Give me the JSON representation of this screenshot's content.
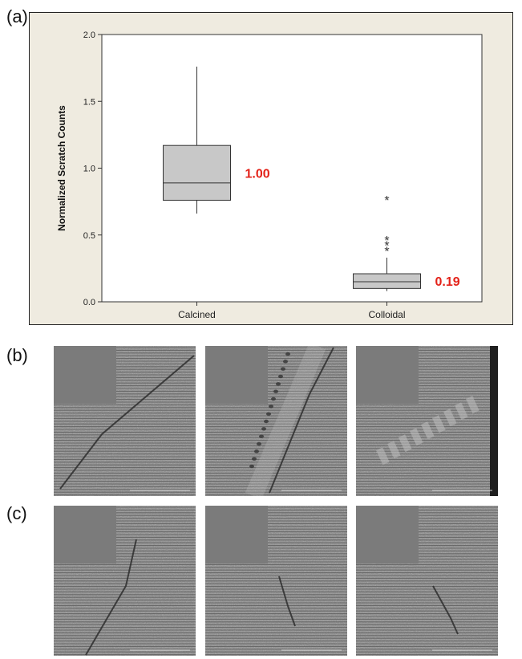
{
  "panels": {
    "a": "(a)",
    "b": "(b)",
    "c": "(c)"
  },
  "chart_data": {
    "type": "box",
    "ylabel": "Normalized Scratch Counts",
    "xlabel": "",
    "ylim": [
      0.0,
      2.0
    ],
    "yticks": [
      "0.0",
      "0.5",
      "1.0",
      "1.5",
      "2.0"
    ],
    "categories": [
      "Calcined",
      "Colloidal"
    ],
    "boxes": [
      {
        "category": "Calcined",
        "whisker_low": 0.66,
        "q1": 0.76,
        "median": 0.89,
        "q3": 1.17,
        "whisker_high": 1.76,
        "outliers": [],
        "annotation": "1.00"
      },
      {
        "category": "Colloidal",
        "whisker_low": 0.08,
        "q1": 0.1,
        "median": 0.15,
        "q3": 0.21,
        "whisker_high": 0.33,
        "outliers": [
          0.4,
          0.44,
          0.48,
          0.78
        ],
        "annotation": "0.19"
      }
    ],
    "colors": {
      "box_fill": "#c8c8c8",
      "annotation": "#e32219",
      "plot_bg": "#ffffff",
      "frame_bg": "#efebe0"
    },
    "grid": false,
    "legend": "none"
  },
  "micrographs": {
    "row_b": [
      {
        "feature": "single diagonal scratch"
      },
      {
        "feature": "scratch with dotted defect chain"
      },
      {
        "feature": "short chatter marks, dark right edge"
      }
    ],
    "row_c": [
      {
        "feature": "thin curved scratch"
      },
      {
        "feature": "short faint scratch"
      },
      {
        "feature": "short faint scratch"
      }
    ]
  }
}
